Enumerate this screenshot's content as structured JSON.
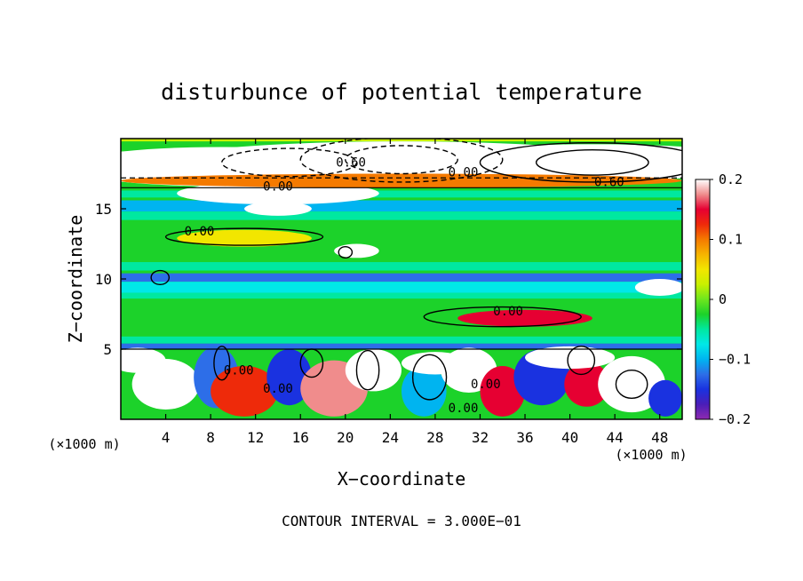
{
  "chart_data": {
    "type": "heatmap",
    "title": "disturbunce of potential temperature",
    "xlabel": "X−coordinate",
    "ylabel": "Z−coordinate",
    "x_unit_left": "(×1000 m)",
    "x_unit_right": "(×1000 m)",
    "xlim": [
      0,
      50
    ],
    "ylim": [
      0,
      20
    ],
    "x_ticks": [
      4,
      8,
      12,
      16,
      20,
      24,
      28,
      32,
      36,
      40,
      44,
      48
    ],
    "x_tick_labels": [
      "4",
      "8",
      "12",
      "16",
      "20",
      "24",
      "28",
      "32",
      "36",
      "40",
      "44",
      "48"
    ],
    "y_ticks": [
      5,
      10,
      15
    ],
    "y_tick_labels": [
      "5",
      "10",
      "15"
    ],
    "colorbar": {
      "range": [
        -0.2,
        0.2
      ],
      "tick_values": [
        0.2,
        0.1,
        0,
        -0.1,
        -0.2
      ],
      "tick_labels": [
        "0.2",
        "0.1",
        "0",
        "−0.1",
        "−0.2"
      ],
      "colors": [
        "#8e2ab0",
        "#4a1eb8",
        "#1a32e0",
        "#2d6ee8",
        "#00b4f0",
        "#00e8e8",
        "#00e8a0",
        "#1cd22a",
        "#6ee61e",
        "#c8f000",
        "#f2e600",
        "#f6b400",
        "#f57a00",
        "#ee2a0a",
        "#e60032",
        "#f08c8c",
        "#ffffff"
      ]
    },
    "contour_labels": [
      {
        "text": "0.60",
        "x": 20.5,
        "z": 18.0
      },
      {
        "text": "0.00",
        "x": 30.5,
        "z": 17.3
      },
      {
        "text": "0.60",
        "x": 43.5,
        "z": 16.6
      },
      {
        "text": "0.00",
        "x": 14.0,
        "z": 16.3
      },
      {
        "text": "0.00",
        "x": 7.0,
        "z": 13.1
      },
      {
        "text": "0.00",
        "x": 34.5,
        "z": 7.4
      },
      {
        "text": "0.00",
        "x": 10.5,
        "z": 3.2
      },
      {
        "text": "0.00",
        "x": 14.0,
        "z": 1.9
      },
      {
        "text": "0.00",
        "x": 30.5,
        "z": 0.5
      },
      {
        "text": "0.00",
        "x": 32.5,
        "z": 2.2
      }
    ],
    "grid": false,
    "footnote": "CONTOUR INTERVAL = 3.000E−01"
  }
}
